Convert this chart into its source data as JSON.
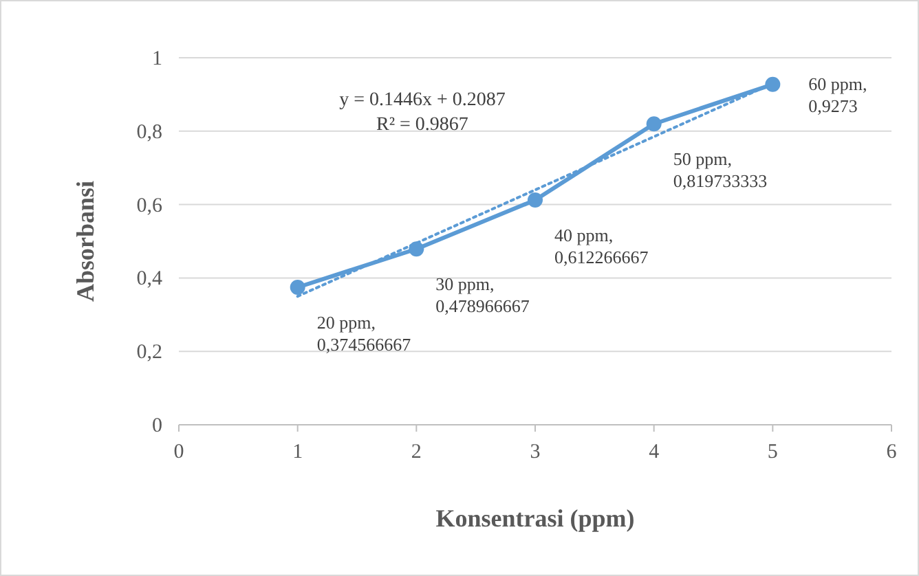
{
  "chart_data": {
    "type": "line",
    "xlabel": "Konsentrasi (ppm)",
    "ylabel": "Absorbansi",
    "x": [
      1,
      2,
      3,
      4,
      5
    ],
    "series": [
      {
        "color": "#5b9bd5",
        "values": [
          0.374566667,
          0.478966667,
          0.612266667,
          0.819733333,
          0.9273
        ],
        "value_labels": [
          "20 ppm, 0,374566667",
          "30 ppm, 0,478966667",
          "40 ppm, 0,612266667",
          "50 ppm, 0,819733333",
          "60 ppm, 0,9273"
        ],
        "marker": "circle",
        "line_style": "solid"
      },
      {
        "type": "line",
        "color": "#5b9bd5",
        "x": [
          1,
          5
        ],
        "values": [
          0.35,
          0.93
        ],
        "marker": "none",
        "line_style": "dotted"
      }
    ],
    "annotations": [
      "y = 0.1446x + 0.2087",
      "R² = 0.9867"
    ],
    "xlim": [
      0,
      6
    ],
    "xticks": [
      0,
      1,
      2,
      3,
      4,
      5,
      6
    ],
    "ylim": [
      0,
      1
    ],
    "yticks": [
      0,
      {
        "value": 0.2,
        "label": "0,2"
      },
      {
        "value": 0.4,
        "label": "0,4"
      },
      {
        "value": 0.6,
        "label": "0,6"
      },
      {
        "value": 0.8,
        "label": "0,8"
      },
      1
    ],
    "grid": "y"
  }
}
